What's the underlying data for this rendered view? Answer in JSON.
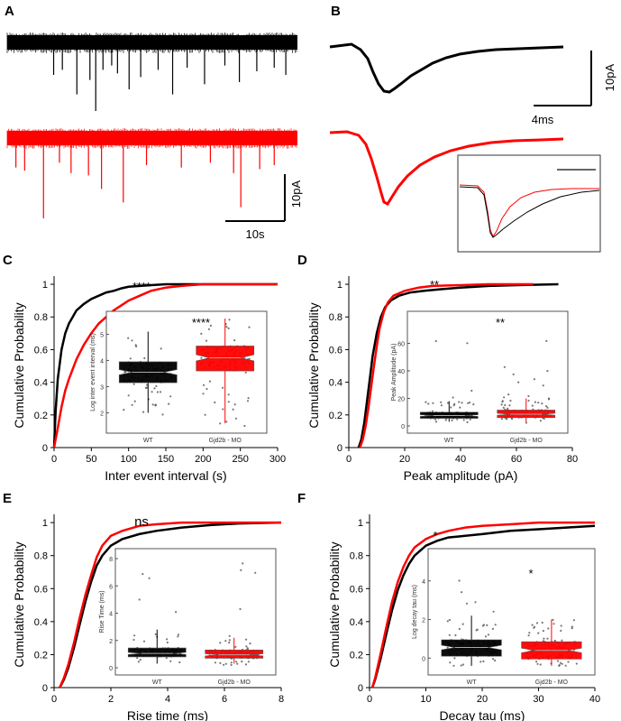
{
  "colors": {
    "wt": "#000000",
    "mo": "#ff0000",
    "inset_box": "#333333",
    "box_fill_wt": "#000000",
    "box_fill_mo": "#ff0000",
    "box_line": "#888888"
  },
  "panels": {
    "A": {
      "label": "A",
      "scale_y": "10pA",
      "scale_x": "10s",
      "traces": [
        {
          "color": "wt",
          "spikes": [
            [
              0.16,
              0.35
            ],
            [
              0.19,
              0.28
            ],
            [
              0.24,
              0.62
            ],
            [
              0.285,
              0.42
            ],
            [
              0.305,
              0.85
            ],
            [
              0.33,
              0.28
            ],
            [
              0.36,
              0.22
            ],
            [
              0.38,
              0.33
            ],
            [
              0.42,
              0.55
            ],
            [
              0.46,
              0.38
            ],
            [
              0.52,
              0.28
            ],
            [
              0.57,
              0.62
            ],
            [
              0.62,
              0.25
            ],
            [
              0.68,
              0.48
            ],
            [
              0.75,
              0.22
            ],
            [
              0.8,
              0.45
            ],
            [
              0.86,
              0.3
            ],
            [
              0.92,
              0.25
            ],
            [
              0.96,
              0.35
            ]
          ]
        },
        {
          "color": "mo",
          "spikes": [
            [
              0.03,
              0.28
            ],
            [
              0.06,
              0.32
            ],
            [
              0.125,
              0.92
            ],
            [
              0.18,
              0.22
            ],
            [
              0.22,
              0.35
            ],
            [
              0.28,
              0.38
            ],
            [
              0.325,
              0.55
            ],
            [
              0.4,
              0.72
            ],
            [
              0.48,
              0.25
            ],
            [
              0.6,
              0.28
            ],
            [
              0.7,
              0.22
            ],
            [
              0.78,
              0.35
            ],
            [
              0.805,
              0.78
            ],
            [
              0.87,
              0.3
            ],
            [
              0.92,
              0.25
            ]
          ]
        }
      ]
    },
    "B": {
      "label": "B",
      "scale_y": "10pA",
      "scale_x": "4ms"
    },
    "C": {
      "label": "C",
      "sig": "****",
      "inset_sig": "****"
    },
    "D": {
      "label": "D",
      "sig": "**",
      "inset_sig": "**"
    },
    "E": {
      "label": "E",
      "sig": "ns"
    },
    "F": {
      "label": "F",
      "sig": "*",
      "inset_sig": "*"
    }
  },
  "chart_data": [
    {
      "panel": "C",
      "type": "line",
      "xlabel": "Inter event interval (s)",
      "ylabel": "Cumulative Probability",
      "xlim": [
        0,
        300
      ],
      "ylim": [
        0,
        1.05
      ],
      "xticks": [
        0,
        50,
        100,
        150,
        200,
        250,
        300
      ],
      "yticks": [
        0,
        0.2,
        0.4,
        0.6,
        0.8,
        1
      ],
      "series": [
        {
          "color": "wt",
          "x": [
            0,
            2,
            5,
            10,
            15,
            20,
            25,
            30,
            40,
            50,
            60,
            70,
            80,
            90,
            100,
            115,
            130,
            150,
            180,
            300
          ],
          "y": [
            0,
            0.22,
            0.42,
            0.6,
            0.7,
            0.76,
            0.8,
            0.84,
            0.88,
            0.91,
            0.93,
            0.95,
            0.96,
            0.975,
            0.985,
            0.99,
            0.995,
            1,
            1,
            1
          ]
        },
        {
          "color": "mo",
          "x": [
            0,
            5,
            10,
            15,
            20,
            30,
            40,
            50,
            60,
            70,
            80,
            90,
            100,
            115,
            130,
            150,
            170,
            200,
            300
          ],
          "y": [
            0,
            0.12,
            0.25,
            0.35,
            0.42,
            0.54,
            0.63,
            0.7,
            0.76,
            0.8,
            0.84,
            0.87,
            0.9,
            0.93,
            0.96,
            0.98,
            0.99,
            1,
            1
          ]
        }
      ],
      "inset": {
        "type": "box",
        "ylabel": "Log inter event interval (ms)",
        "categories": [
          "WT",
          "Gjd2b - MO"
        ],
        "yticks": [
          2,
          3,
          4,
          5
        ],
        "ylim": [
          1.5,
          5.6
        ],
        "boxes": [
          {
            "color": "wt",
            "q1": 3.15,
            "median": 3.55,
            "q3": 3.95,
            "notch": 0.1,
            "whisker_low": 2.0,
            "whisker_high": 5.1,
            "spread_low": 1.9,
            "spread_high": 5.2
          },
          {
            "color": "mo",
            "q1": 3.6,
            "median": 4.1,
            "q3": 4.55,
            "notch": 0.12,
            "whisker_low": 1.6,
            "whisker_high": 5.6,
            "spread_low": 1.5,
            "spread_high": 5.5
          }
        ]
      }
    },
    {
      "panel": "D",
      "type": "line",
      "xlabel": "Peak amplitude (pA)",
      "ylabel": "Cumulative Probability",
      "xlim": [
        0,
        80
      ],
      "ylim": [
        0,
        1.05
      ],
      "xticks": [
        0,
        20,
        40,
        60,
        80
      ],
      "yticks": [
        0,
        0.2,
        0.4,
        0.6,
        0.8,
        1
      ],
      "series": [
        {
          "color": "wt",
          "x": [
            3.5,
            4.5,
            5.5,
            6.5,
            7.5,
            8.5,
            10,
            11.5,
            13,
            15,
            18,
            22,
            27,
            33,
            40,
            50,
            60,
            75
          ],
          "y": [
            0,
            0.05,
            0.15,
            0.28,
            0.42,
            0.56,
            0.7,
            0.8,
            0.86,
            0.9,
            0.93,
            0.95,
            0.96,
            0.97,
            0.98,
            0.99,
            0.995,
            1
          ]
        },
        {
          "color": "mo",
          "x": [
            4,
            5,
            6,
            7,
            8,
            9,
            10,
            11,
            12.5,
            14,
            16,
            20,
            25,
            30,
            40,
            50,
            66
          ],
          "y": [
            0,
            0.05,
            0.13,
            0.24,
            0.37,
            0.5,
            0.62,
            0.73,
            0.83,
            0.89,
            0.93,
            0.96,
            0.98,
            0.99,
            0.995,
            1,
            1
          ]
        }
      ],
      "inset": {
        "type": "box",
        "ylabel": "Peak Amplitude (pA)",
        "categories": [
          "WT",
          "Gjd2b - MO"
        ],
        "yticks": [
          0,
          20,
          40,
          60
        ],
        "ylim": [
          0,
          78
        ],
        "boxes": [
          {
            "color": "wt",
            "q1": 5.5,
            "median": 7.5,
            "q3": 10,
            "notch": 0.6,
            "whisker_low": 3,
            "whisker_high": 18,
            "spread_low": 2,
            "spread_high": 75
          },
          {
            "color": "mo",
            "q1": 6,
            "median": 8.5,
            "q3": 11.5,
            "notch": 0.7,
            "whisker_low": 3,
            "whisker_high": 20,
            "spread_low": 2,
            "spread_high": 66
          }
        ]
      }
    },
    {
      "panel": "E",
      "type": "line",
      "xlabel": "Rise time (ms)",
      "ylabel": "Cumulative Probability",
      "xlim": [
        0,
        8
      ],
      "ylim": [
        0,
        1.05
      ],
      "xticks": [
        0,
        2,
        4,
        6,
        8
      ],
      "yticks": [
        0,
        0.2,
        0.4,
        0.6,
        0.8,
        1
      ],
      "series": [
        {
          "color": "wt",
          "x": [
            0.2,
            0.35,
            0.5,
            0.7,
            0.9,
            1.1,
            1.3,
            1.5,
            1.7,
            2.0,
            2.4,
            3.0,
            3.6,
            4.5,
            5.5,
            6.5,
            8
          ],
          "y": [
            0,
            0.05,
            0.12,
            0.24,
            0.38,
            0.52,
            0.64,
            0.74,
            0.8,
            0.86,
            0.9,
            0.93,
            0.95,
            0.97,
            0.985,
            0.995,
            1
          ]
        },
        {
          "color": "mo",
          "x": [
            0.2,
            0.35,
            0.5,
            0.7,
            0.9,
            1.1,
            1.3,
            1.5,
            1.7,
            2.0,
            2.4,
            3.0,
            3.6,
            4.5,
            8
          ],
          "y": [
            0,
            0.06,
            0.14,
            0.27,
            0.42,
            0.56,
            0.68,
            0.79,
            0.86,
            0.92,
            0.95,
            0.98,
            0.99,
            1,
            1
          ]
        }
      ],
      "inset": {
        "type": "box",
        "ylabel": "Rise Time (ms)",
        "categories": [
          "WT",
          "Gjd2b - MO"
        ],
        "yticks": [
          0,
          2,
          4,
          6,
          8
        ],
        "ylim": [
          0,
          8.2
        ],
        "boxes": [
          {
            "color": "wt",
            "q1": 0.8,
            "median": 1.05,
            "q3": 1.45,
            "notch": 0.08,
            "whisker_low": 0.3,
            "whisker_high": 2.8,
            "spread_low": 0.2,
            "spread_high": 7.6
          },
          {
            "color": "mo",
            "q1": 0.7,
            "median": 0.95,
            "q3": 1.3,
            "notch": 0.08,
            "whisker_low": 0.3,
            "whisker_high": 2.2,
            "spread_low": 0.2,
            "spread_high": 7.7
          }
        ]
      }
    },
    {
      "panel": "F",
      "type": "line",
      "xlabel": "Decay tau (ms)",
      "ylabel": "Cumulative Probability",
      "xlim": [
        0,
        40
      ],
      "ylim": [
        0,
        1.05
      ],
      "xticks": [
        0,
        10,
        20,
        30,
        40
      ],
      "yticks": [
        0,
        0.2,
        0.4,
        0.6,
        0.8,
        1
      ],
      "series": [
        {
          "color": "wt",
          "x": [
            0.5,
            1,
            2,
            3,
            4,
            5,
            6,
            7,
            8,
            10,
            12,
            14,
            17,
            20,
            25,
            30,
            35,
            40
          ],
          "y": [
            0,
            0.05,
            0.18,
            0.33,
            0.47,
            0.59,
            0.68,
            0.75,
            0.8,
            0.86,
            0.89,
            0.91,
            0.92,
            0.93,
            0.95,
            0.96,
            0.97,
            0.98
          ]
        },
        {
          "color": "mo",
          "x": [
            0.5,
            1,
            2,
            3,
            4,
            5,
            6,
            7,
            8,
            10,
            12,
            14,
            17,
            20,
            25,
            30,
            40
          ],
          "y": [
            0,
            0.06,
            0.21,
            0.37,
            0.52,
            0.64,
            0.73,
            0.8,
            0.85,
            0.9,
            0.93,
            0.95,
            0.97,
            0.98,
            0.99,
            1,
            1
          ]
        }
      ],
      "inset": {
        "type": "box",
        "ylabel": "Log decay tau (ms)",
        "categories": [
          "WT",
          "Gjd2b - MO"
        ],
        "yticks": [
          0,
          2,
          4
        ],
        "ylim": [
          -0.5,
          5.3
        ],
        "boxes": [
          {
            "color": "wt",
            "q1": 0.1,
            "median": 0.55,
            "q3": 0.95,
            "notch": 0.12,
            "whisker_low": -0.4,
            "whisker_high": 2.2,
            "spread_low": -0.4,
            "spread_high": 5.2
          },
          {
            "color": "mo",
            "q1": -0.05,
            "median": 0.4,
            "q3": 0.85,
            "notch": 0.12,
            "whisker_low": -0.4,
            "whisker_high": 2.0,
            "spread_low": -0.4,
            "spread_high": 2.5
          }
        ]
      }
    }
  ]
}
